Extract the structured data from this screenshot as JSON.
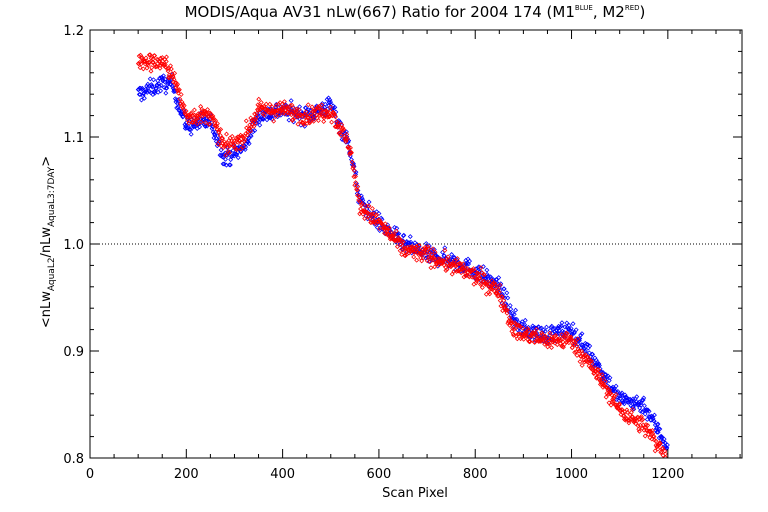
{
  "chart_data": {
    "type": "scatter",
    "title": {
      "main": "MODIS/Aqua AV31 nLw(667) Ratio for 2004 174 (M1",
      "sup1": "BLUE",
      "mid": ", M2",
      "sup2": "RED",
      "end": ")"
    },
    "xlabel": "Scan Pixel",
    "ylabel": {
      "a": "<nLw",
      "sub1": "AquaL2",
      "b": "/nLw",
      "sub2": "AquaL3:7DAY",
      "c": ">"
    },
    "xlim": [
      0,
      1354
    ],
    "ylim": [
      0.8,
      1.2
    ],
    "x_ticks": [
      0,
      200,
      400,
      600,
      800,
      1000,
      1200
    ],
    "x_tick_labels": [
      "0",
      "200",
      "400",
      "600",
      "800",
      "1000",
      "1200"
    ],
    "y_ticks": [
      0.8,
      0.9,
      1.0,
      1.1,
      1.2
    ],
    "y_tick_labels": [
      "0.8",
      "0.9",
      "1.0",
      "1.1",
      "1.2"
    ],
    "reference_line": 1.0,
    "grid": false,
    "series": [
      {
        "color": "#0000ff",
        "x_range": [
          100,
          1200
        ],
        "trend": [
          [
            100,
            1.14
          ],
          [
            150,
            1.15
          ],
          [
            170,
            1.15
          ],
          [
            200,
            1.11
          ],
          [
            250,
            1.115
          ],
          [
            280,
            1.08
          ],
          [
            320,
            1.09
          ],
          [
            350,
            1.12
          ],
          [
            400,
            1.125
          ],
          [
            450,
            1.12
          ],
          [
            500,
            1.13
          ],
          [
            540,
            1.09
          ],
          [
            560,
            1.04
          ],
          [
            600,
            1.02
          ],
          [
            650,
            1.0
          ],
          [
            700,
            0.99
          ],
          [
            750,
            0.985
          ],
          [
            800,
            0.975
          ],
          [
            850,
            0.96
          ],
          [
            880,
            0.93
          ],
          [
            900,
            0.92
          ],
          [
            950,
            0.915
          ],
          [
            1000,
            0.92
          ],
          [
            1050,
            0.89
          ],
          [
            1100,
            0.855
          ],
          [
            1150,
            0.85
          ],
          [
            1200,
            0.81
          ]
        ]
      },
      {
        "color": "#ff0000",
        "x_range": [
          100,
          1200
        ],
        "trend": [
          [
            100,
            1.17
          ],
          [
            150,
            1.17
          ],
          [
            170,
            1.16
          ],
          [
            200,
            1.12
          ],
          [
            250,
            1.12
          ],
          [
            280,
            1.09
          ],
          [
            320,
            1.1
          ],
          [
            350,
            1.125
          ],
          [
            400,
            1.125
          ],
          [
            450,
            1.12
          ],
          [
            500,
            1.125
          ],
          [
            540,
            1.09
          ],
          [
            560,
            1.035
          ],
          [
            600,
            1.02
          ],
          [
            650,
            0.995
          ],
          [
            700,
            0.99
          ],
          [
            750,
            0.98
          ],
          [
            800,
            0.97
          ],
          [
            850,
            0.955
          ],
          [
            880,
            0.92
          ],
          [
            900,
            0.915
          ],
          [
            950,
            0.91
          ],
          [
            1000,
            0.91
          ],
          [
            1050,
            0.88
          ],
          [
            1100,
            0.845
          ],
          [
            1150,
            0.83
          ],
          [
            1200,
            0.8
          ]
        ]
      }
    ]
  }
}
